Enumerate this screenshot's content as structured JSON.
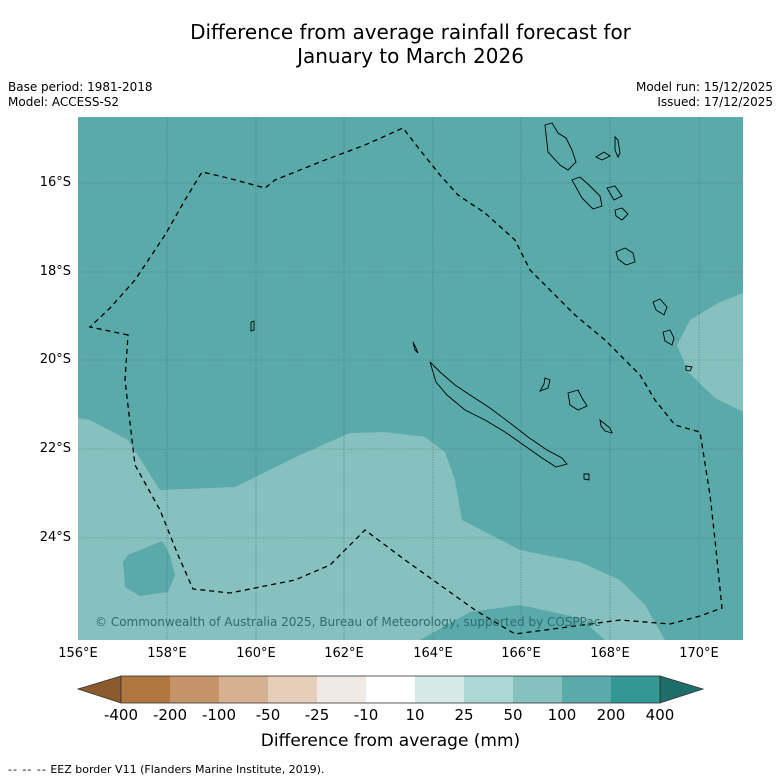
{
  "title_line1": "Difference from average rainfall forecast for",
  "title_line2": "January to March 2026",
  "meta": {
    "base_period": "Base period: 1981-2018",
    "model": "Model: ACCESS-S2",
    "model_run": "Model run: 15/12/2025",
    "issued": "Issued: 17/12/2025"
  },
  "map": {
    "lat_labels": [
      "16°S",
      "18°S",
      "20°S",
      "22°S",
      "24°S"
    ],
    "lon_labels": [
      "156°E",
      "158°E",
      "160°E",
      "162°E",
      "164°E",
      "166°E",
      "168°E",
      "170°E"
    ],
    "copyright": "© Commonwealth of Australia 2025, Bureau of Meteorology, supported by COSPPac",
    "colors": {
      "band_100_200": "#5aaaaa",
      "band_50_100": "#86c0bf",
      "land_outline": "#000000",
      "eez_border": "#000000"
    }
  },
  "colorbar": {
    "labels": [
      "-400",
      "-200",
      "-100",
      "-50",
      "-25",
      "-10",
      "10",
      "25",
      "50",
      "100",
      "200",
      "400"
    ],
    "colors": [
      "#8a5a2c",
      "#b07840",
      "#c49468",
      "#d5b191",
      "#e5cfbb",
      "#efeae6",
      "#ffffff",
      "#d5eae7",
      "#add8d5",
      "#86c0bf",
      "#5aaaaa",
      "#329893",
      "#1d6e6a"
    ],
    "title": "Difference from average (mm)"
  },
  "footnote": {
    "dash": "-- -- --",
    "text": "EEZ border V11 (Flanders Marine Institute, 2019)."
  }
}
